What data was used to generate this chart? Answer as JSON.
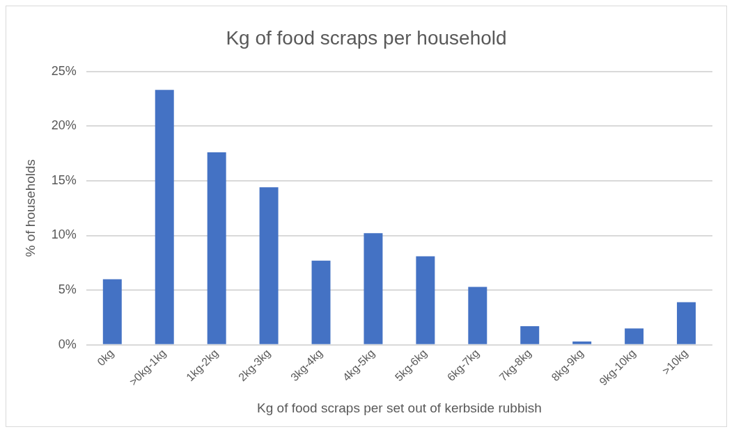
{
  "chart_data": {
    "type": "bar",
    "title": "Kg of food scraps per household",
    "xlabel": "Kg of food scraps per set out of kerbside rubbish",
    "ylabel": "% of households",
    "categories": [
      "0kg",
      ">0kg-1kg",
      "1kg-2kg",
      "2kg-3kg",
      "3kg-4kg",
      "4kg-5kg",
      "5kg-6kg",
      "6kg-7kg",
      "7kg-8kg",
      "8kg-9kg",
      "9kg-10kg",
      ">10kg"
    ],
    "values": [
      6.0,
      23.3,
      17.6,
      14.4,
      7.7,
      10.2,
      8.1,
      5.3,
      1.7,
      0.3,
      1.5,
      3.9
    ],
    "color": "#4472c4",
    "ylim": [
      0,
      25
    ],
    "yticks": [
      {
        "value": 0,
        "label": "0%"
      },
      {
        "value": 5,
        "label": "5%"
      },
      {
        "value": 10,
        "label": "10%"
      },
      {
        "value": 15,
        "label": "15%"
      },
      {
        "value": 20,
        "label": "20%"
      },
      {
        "value": 25,
        "label": "25%"
      }
    ],
    "grid": "y",
    "legend": false
  }
}
